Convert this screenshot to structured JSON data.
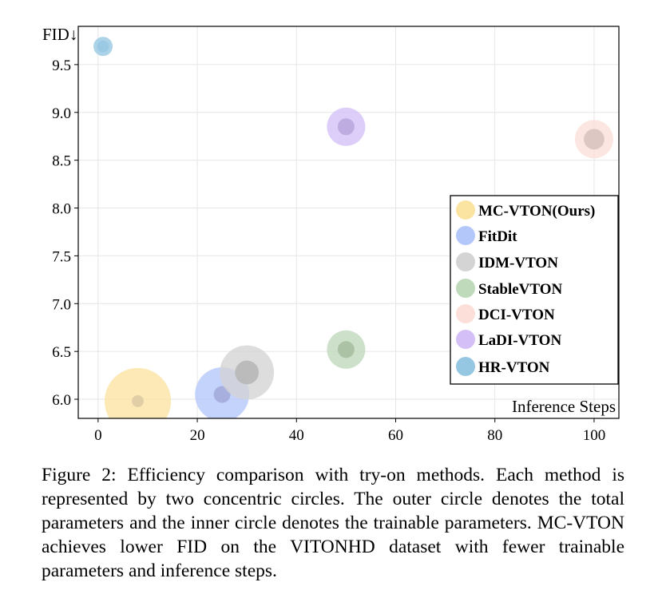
{
  "chart_data": {
    "type": "scatter",
    "xlabel": "Inference Steps",
    "ylabel": "FID↓",
    "xlim": [
      -4,
      105
    ],
    "ylim": [
      5.8,
      9.9
    ],
    "xticks": [
      0,
      20,
      40,
      60,
      80,
      100
    ],
    "yticks": [
      6.0,
      6.5,
      7.0,
      7.5,
      8.0,
      8.5,
      9.0,
      9.5
    ],
    "ytick_labels": [
      "6.0",
      "6.5",
      "7.0",
      "7.5",
      "8.0",
      "8.5",
      "9.0",
      "9.5"
    ],
    "grid": true,
    "legend_position": "right",
    "series": [
      {
        "name": "MC-VTON(Ours)",
        "x": 8,
        "y": 5.98,
        "color": "#fbe3a1",
        "inner_color": "#dcc9a3",
        "outer_size": 12,
        "inner_size": 1
      },
      {
        "name": "FitDit",
        "x": 25,
        "y": 6.05,
        "color": "#b4c7fb",
        "inner_color": "#a2a8d8",
        "outer_size": 8,
        "inner_size": 2
      },
      {
        "name": "IDM-VTON",
        "x": 30,
        "y": 6.28,
        "color": "#d4d4d4",
        "inner_color": "#b5b5b5",
        "outer_size": 8,
        "inner_size": 4
      },
      {
        "name": "StableVTON",
        "x": 50,
        "y": 6.52,
        "color": "#bfd9bb",
        "inner_color": "#a6bc9e",
        "outer_size": 4,
        "inner_size": 2
      },
      {
        "name": "DCI-VTON",
        "x": 100,
        "y": 8.72,
        "color": "#fbdfd8",
        "inner_color": "#d6c1bc",
        "outer_size": 4,
        "inner_size": 3
      },
      {
        "name": "LaDI-VTON",
        "x": 50,
        "y": 8.85,
        "color": "#d4c0f7",
        "inner_color": "#b9a5dc",
        "outer_size": 4,
        "inner_size": 2
      },
      {
        "name": "HR-VTON",
        "x": 1,
        "y": 9.69,
        "color": "#96c7e2",
        "inner_color": "#96c7e2",
        "outer_size": 1,
        "inner_size": 1
      }
    ]
  },
  "caption": "Figure 2: Efficiency comparison with try-on methods. Each method is represented by two concentric circles.  The outer circle denotes the total parameters and the inner circle denotes the trainable parameters. MC-VTON achieves lower FID on the VITONHD dataset with fewer trainable parameters and inference steps."
}
